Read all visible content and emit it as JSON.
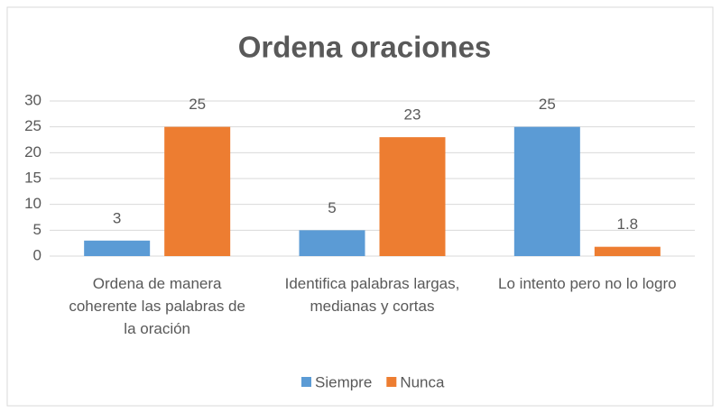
{
  "chart_data": {
    "type": "bar",
    "title": "Ordena oraciones",
    "categories": [
      "Ordena de manera coherente las palabras de la oración",
      "Identifica palabras largas, medianas y cortas",
      "Lo intento pero no lo logro"
    ],
    "series": [
      {
        "name": "Siempre",
        "color": "#5b9bd5",
        "values": [
          3,
          5,
          25
        ]
      },
      {
        "name": "Nunca",
        "color": "#ed7d31",
        "values": [
          25,
          23,
          1.8
        ]
      }
    ],
    "ylim": [
      0,
      30
    ],
    "yticks": [
      0,
      5,
      10,
      15,
      20,
      25,
      30
    ],
    "grid": true,
    "legend": "bottom"
  }
}
